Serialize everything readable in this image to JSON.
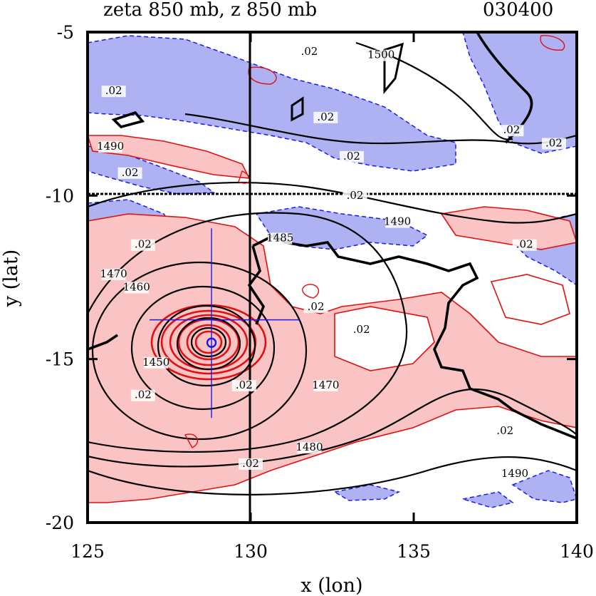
{
  "chart_data": {
    "type": "contour",
    "title": "zeta 850 mb, z 850 mb",
    "timestamp": "030400",
    "xlabel": "x (lon)",
    "ylabel": "y (lat)",
    "xlim": [
      125,
      140
    ],
    "ylim": [
      -20,
      -5
    ],
    "x_ticks": [
      125,
      130,
      135,
      140
    ],
    "y_ticks": [
      -5,
      -10,
      -15,
      -20
    ],
    "grid_lines": {
      "lon": 130,
      "lat": -10
    },
    "storm_center": {
      "lon": 128.8,
      "lat": -14.5
    },
    "track_cross": {
      "lon_range": [
        126.9,
        131.5
      ],
      "lat": -13.8,
      "lat_range": [
        -16.8,
        -11.0
      ],
      "lon": 128.8
    },
    "height_contour_labels": [
      {
        "text": "1500",
        "lon": 134.0,
        "lat": -5.8
      },
      {
        "text": "1490",
        "lon": 134.5,
        "lat": -10.9
      },
      {
        "text": "1490",
        "lon": 138.1,
        "lat": -18.6
      },
      {
        "text": "1480",
        "lon": 131.8,
        "lat": -17.8
      },
      {
        "text": "1470",
        "lon": 132.3,
        "lat": -15.9
      },
      {
        "text": "1470",
        "lon": 125.8,
        "lat": -12.5
      },
      {
        "text": "1460",
        "lon": 126.5,
        "lat": -12.9
      },
      {
        "text": "1450",
        "lon": 127.1,
        "lat": -15.2
      },
      {
        "text": "1490",
        "lon": 125.7,
        "lat": -8.6
      },
      {
        "text": "1485",
        "lon": 130.9,
        "lat": -11.4
      }
    ],
    "vorticity_contour_labels": [
      {
        "text": ".02",
        "lon": 131.8,
        "lat": -5.7
      },
      {
        "text": ".02",
        "lon": 125.8,
        "lat": -6.9
      },
      {
        "text": ".02",
        "lon": 132.3,
        "lat": -7.7
      },
      {
        "text": ".02",
        "lon": 138.0,
        "lat": -8.1
      },
      {
        "text": ".02",
        "lon": 139.3,
        "lat": -8.5
      },
      {
        "text": ".02",
        "lon": 133.1,
        "lat": -8.9
      },
      {
        "text": ".02",
        "lon": 126.3,
        "lat": -9.4
      },
      {
        "text": ".02",
        "lon": 133.2,
        "lat": -10.1
      },
      {
        "text": ".02",
        "lon": 126.7,
        "lat": -11.6
      },
      {
        "text": ".02",
        "lon": 138.4,
        "lat": -11.6
      },
      {
        "text": ".02",
        "lon": 132.0,
        "lat": -13.5
      },
      {
        "text": ".02",
        "lon": 133.4,
        "lat": -14.2
      },
      {
        "text": ".02",
        "lon": 126.7,
        "lat": -16.2
      },
      {
        "text": ".02",
        "lon": 129.8,
        "lat": -15.9
      },
      {
        "text": ".02",
        "lon": 137.8,
        "lat": -17.3
      },
      {
        "text": ".02",
        "lon": 130.0,
        "lat": -18.3
      }
    ],
    "legend": "none"
  }
}
